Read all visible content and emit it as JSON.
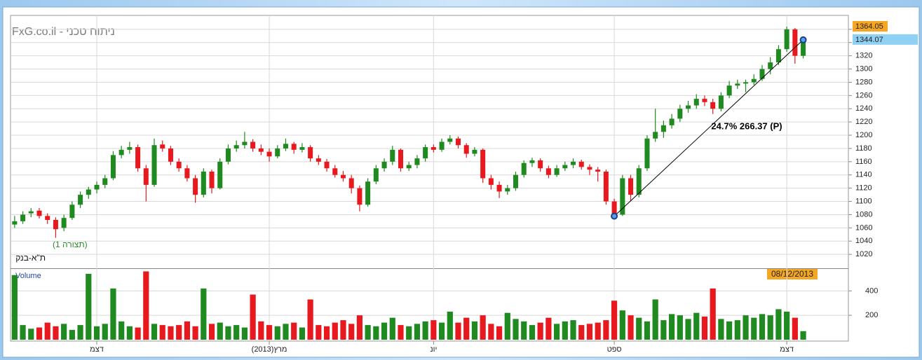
{
  "chart_data": {
    "type": "candlestick",
    "title": "FxG.co.il - ניתוח טכני",
    "subtitle": "(תצורה 1)",
    "instrument": "ת\"א-בנק",
    "volume_label": "Volume",
    "date_label": "08/12/2013",
    "annotation": "24.7% 266.37 (P)",
    "up_color": "#1f8a1f",
    "down_color": "#e8191e",
    "grid": true,
    "xlim": [
      -0.5,
      101.5
    ],
    "xticks": [
      {
        "value": 10,
        "label": "דצמ"
      },
      {
        "value": 31,
        "label": "מרץ(2013)"
      },
      {
        "value": 51,
        "label": "יונ"
      },
      {
        "value": 73,
        "label": "ספט"
      },
      {
        "value": 94,
        "label": "דצמ"
      }
    ],
    "ylim": [
      999,
      1381
    ],
    "yticks": [
      1020,
      1040,
      1060,
      1080,
      1100,
      1120,
      1140,
      1160,
      1180,
      1200,
      1220,
      1240,
      1260,
      1280,
      1300,
      1320,
      1340,
      1360
    ],
    "vol_ylim": [
      0,
      580
    ],
    "vol_yticks": [
      200,
      400
    ],
    "trendline": {
      "x": [
        73,
        96
      ],
      "y": [
        1077.7,
        1344.07
      ],
      "color": "#000000"
    },
    "ohlc": [
      [
        1065,
        1078,
        1060,
        1070
      ],
      [
        1070,
        1085,
        1066,
        1080
      ],
      [
        1082,
        1090,
        1076,
        1085
      ],
      [
        1086,
        1090,
        1074,
        1078
      ],
      [
        1078,
        1082,
        1066,
        1072
      ],
      [
        1072,
        1076,
        1045,
        1058
      ],
      [
        1060,
        1080,
        1055,
        1075
      ],
      [
        1075,
        1100,
        1072,
        1095
      ],
      [
        1095,
        1115,
        1090,
        1110
      ],
      [
        1110,
        1122,
        1104,
        1118
      ],
      [
        1118,
        1130,
        1112,
        1125
      ],
      [
        1125,
        1140,
        1120,
        1135
      ],
      [
        1135,
        1176,
        1132,
        1170
      ],
      [
        1170,
        1184,
        1165,
        1178
      ],
      [
        1178,
        1190,
        1172,
        1182
      ],
      [
        1182,
        1186,
        1145,
        1150
      ],
      [
        1150,
        1155,
        1100,
        1125
      ],
      [
        1125,
        1195,
        1122,
        1185
      ],
      [
        1186,
        1192,
        1175,
        1180
      ],
      [
        1180,
        1184,
        1155,
        1160
      ],
      [
        1160,
        1165,
        1145,
        1150
      ],
      [
        1150,
        1155,
        1130,
        1135
      ],
      [
        1135,
        1140,
        1098,
        1110
      ],
      [
        1110,
        1150,
        1106,
        1145
      ],
      [
        1145,
        1148,
        1112,
        1120
      ],
      [
        1120,
        1165,
        1118,
        1160
      ],
      [
        1160,
        1186,
        1156,
        1180
      ],
      [
        1180,
        1192,
        1175,
        1185
      ],
      [
        1185,
        1205,
        1180,
        1190
      ],
      [
        1190,
        1194,
        1175,
        1180
      ],
      [
        1180,
        1186,
        1170,
        1175
      ],
      [
        1175,
        1180,
        1160,
        1168
      ],
      [
        1168,
        1185,
        1165,
        1180
      ],
      [
        1180,
        1195,
        1176,
        1187
      ],
      [
        1187,
        1190,
        1172,
        1178
      ],
      [
        1178,
        1188,
        1174,
        1182
      ],
      [
        1182,
        1185,
        1160,
        1165
      ],
      [
        1165,
        1170,
        1155,
        1160
      ],
      [
        1160,
        1164,
        1145,
        1150
      ],
      [
        1150,
        1155,
        1136,
        1140
      ],
      [
        1140,
        1146,
        1130,
        1135
      ],
      [
        1135,
        1140,
        1112,
        1120
      ],
      [
        1120,
        1124,
        1085,
        1095
      ],
      [
        1095,
        1135,
        1092,
        1130
      ],
      [
        1130,
        1155,
        1126,
        1150
      ],
      [
        1150,
        1165,
        1145,
        1160
      ],
      [
        1160,
        1184,
        1155,
        1178
      ],
      [
        1178,
        1180,
        1145,
        1150
      ],
      [
        1150,
        1160,
        1146,
        1155
      ],
      [
        1155,
        1170,
        1150,
        1165
      ],
      [
        1165,
        1186,
        1160,
        1182
      ],
      [
        1182,
        1186,
        1174,
        1178
      ],
      [
        1178,
        1195,
        1175,
        1190
      ],
      [
        1190,
        1200,
        1186,
        1195
      ],
      [
        1195,
        1198,
        1180,
        1185
      ],
      [
        1185,
        1188,
        1166,
        1172
      ],
      [
        1172,
        1182,
        1168,
        1178
      ],
      [
        1178,
        1180,
        1128,
        1135
      ],
      [
        1135,
        1140,
        1118,
        1125
      ],
      [
        1125,
        1130,
        1105,
        1115
      ],
      [
        1115,
        1125,
        1110,
        1120
      ],
      [
        1120,
        1145,
        1116,
        1140
      ],
      [
        1140,
        1162,
        1136,
        1158
      ],
      [
        1158,
        1166,
        1152,
        1162
      ],
      [
        1162,
        1165,
        1145,
        1150
      ],
      [
        1150,
        1154,
        1135,
        1140
      ],
      [
        1140,
        1155,
        1137,
        1150
      ],
      [
        1150,
        1160,
        1146,
        1155
      ],
      [
        1155,
        1165,
        1150,
        1160
      ],
      [
        1160,
        1163,
        1148,
        1152
      ],
      [
        1152,
        1156,
        1140,
        1148
      ],
      [
        1148,
        1152,
        1130,
        1145
      ],
      [
        1145,
        1148,
        1095,
        1100
      ],
      [
        1100,
        1104,
        1075,
        1080
      ],
      [
        1080,
        1140,
        1078,
        1135
      ],
      [
        1135,
        1140,
        1100,
        1110
      ],
      [
        1110,
        1155,
        1106,
        1150
      ],
      [
        1150,
        1200,
        1146,
        1195
      ],
      [
        1195,
        1240,
        1190,
        1205
      ],
      [
        1205,
        1222,
        1196,
        1215
      ],
      [
        1215,
        1232,
        1210,
        1225
      ],
      [
        1225,
        1246,
        1220,
        1240
      ],
      [
        1240,
        1252,
        1234,
        1245
      ],
      [
        1245,
        1262,
        1240,
        1255
      ],
      [
        1255,
        1260,
        1244,
        1250
      ],
      [
        1250,
        1255,
        1232,
        1240
      ],
      [
        1240,
        1265,
        1236,
        1260
      ],
      [
        1260,
        1282,
        1256,
        1275
      ],
      [
        1275,
        1284,
        1270,
        1278
      ],
      [
        1278,
        1284,
        1265,
        1280
      ],
      [
        1280,
        1292,
        1276,
        1285
      ],
      [
        1285,
        1306,
        1282,
        1300
      ],
      [
        1300,
        1318,
        1292,
        1310
      ],
      [
        1310,
        1336,
        1306,
        1330
      ],
      [
        1330,
        1364.05,
        1326,
        1360
      ],
      [
        1360,
        1362,
        1308,
        1320
      ],
      [
        1320,
        1348,
        1316,
        1344.07
      ]
    ],
    "volume": [
      530,
      120,
      90,
      100,
      140,
      110,
      130,
      80,
      120,
      540,
      110,
      130,
      420,
      150,
      110,
      100,
      560,
      130,
      120,
      110,
      120,
      150,
      110,
      420,
      130,
      140,
      110,
      120,
      100,
      370,
      150,
      120,
      110,
      130,
      140,
      100,
      330,
      120,
      110,
      140,
      160,
      130,
      200,
      120,
      110,
      140,
      180,
      120,
      110,
      130,
      150,
      160,
      140,
      230,
      140,
      180,
      150,
      200,
      130,
      110,
      220,
      170,
      150,
      120,
      140,
      180,
      130,
      150,
      160,
      120,
      130,
      140,
      160,
      320,
      240,
      200,
      180,
      150,
      330,
      160,
      210,
      200,
      170,
      220,
      190,
      420,
      170,
      150,
      160,
      200,
      180,
      210,
      200,
      250,
      230,
      180,
      70
    ]
  }
}
